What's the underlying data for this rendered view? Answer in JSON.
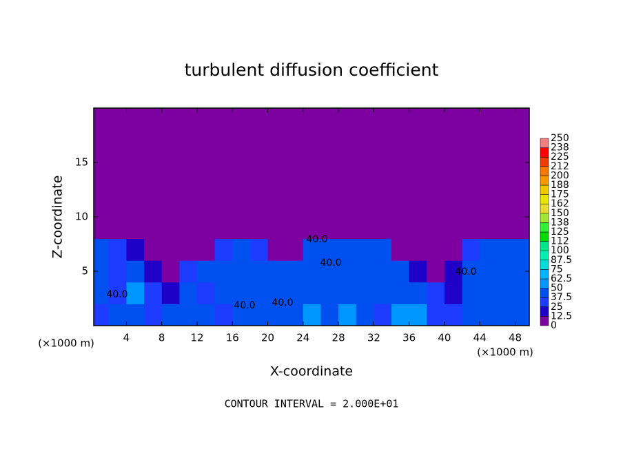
{
  "chart_data": {
    "type": "heatmap",
    "title": "turbulent diffusion coefficient",
    "x_label": "X-coordinate",
    "y_label": "Z-coordinate",
    "x_unit_label": "(×1000 m)",
    "y_unit_label": "(×1000 m)",
    "footer": "CONTOUR INTERVAL = 2.000E+01",
    "xlim": [
      0.3,
      49.6
    ],
    "ylim": [
      0,
      20
    ],
    "xticks": [
      4,
      8,
      12,
      16,
      20,
      24,
      28,
      32,
      36,
      40,
      44,
      48
    ],
    "yticks": [
      5,
      10,
      15
    ],
    "x": [
      0,
      2,
      4,
      6,
      8,
      10,
      12,
      14,
      16,
      18,
      20,
      22,
      24,
      26,
      28,
      30,
      32,
      34,
      36,
      38,
      40,
      42,
      44,
      46,
      48,
      50
    ],
    "y": [
      0,
      2,
      4,
      6,
      8,
      10,
      12,
      14,
      16,
      18,
      20
    ],
    "z": [
      [
        30,
        40,
        45,
        35,
        38,
        40,
        40,
        35,
        38,
        42,
        45,
        40,
        55,
        45,
        60,
        40,
        35,
        50,
        60,
        30,
        30,
        45,
        40,
        40,
        45
      ],
      [
        40,
        35,
        55,
        30,
        15,
        40,
        35,
        40,
        40,
        45,
        40,
        40,
        45,
        40,
        45,
        40,
        40,
        45,
        40,
        25,
        20,
        40,
        45,
        40,
        40
      ],
      [
        40,
        35,
        45,
        15,
        10,
        35,
        40,
        40,
        45,
        40,
        45,
        40,
        40,
        45,
        40,
        40,
        40,
        40,
        15,
        10,
        20,
        40,
        40,
        40,
        45
      ],
      [
        40,
        35,
        20,
        10,
        5,
        5,
        5,
        30,
        40,
        35,
        5,
        5,
        40,
        40,
        45,
        45,
        40,
        10,
        5,
        5,
        5,
        30,
        40,
        40,
        40
      ],
      [
        5,
        5,
        3,
        2,
        2,
        2,
        2,
        2,
        3,
        2,
        2,
        2,
        3,
        2,
        2,
        2,
        2,
        2,
        2,
        2,
        2,
        2,
        2,
        2,
        2
      ],
      [
        1,
        1,
        1,
        1,
        1,
        1,
        1,
        1,
        1,
        1,
        1,
        1,
        1,
        1,
        1,
        1,
        1,
        1,
        1,
        1,
        1,
        1,
        1,
        1,
        1
      ],
      [
        1,
        1,
        1,
        1,
        1,
        1,
        1,
        1,
        1,
        1,
        1,
        1,
        1,
        1,
        1,
        1,
        1,
        1,
        1,
        1,
        1,
        1,
        1,
        1,
        1
      ],
      [
        1,
        1,
        1,
        1,
        1,
        1,
        1,
        1,
        1,
        1,
        1,
        1,
        1,
        1,
        1,
        1,
        1,
        1,
        1,
        1,
        1,
        1,
        1,
        1,
        1
      ],
      [
        1,
        1,
        1,
        1,
        1,
        1,
        1,
        1,
        1,
        1,
        1,
        1,
        1,
        1,
        1,
        1,
        1,
        1,
        1,
        1,
        1,
        1,
        1,
        1,
        1
      ],
      [
        1,
        1,
        1,
        1,
        1,
        1,
        1,
        1,
        1,
        1,
        1,
        1,
        1,
        1,
        1,
        1,
        1,
        1,
        1,
        1,
        1,
        1,
        1,
        1,
        1
      ]
    ],
    "contour_labels": [
      "40.0",
      "40.0",
      "40.0",
      "40.0",
      "40.0",
      "40.0"
    ],
    "colorbar": {
      "ticks": [
        0,
        12.5,
        25,
        37.5,
        50,
        62.5,
        75,
        87.5,
        100,
        {
          "value": 112.5,
          "label": "112"
        },
        125,
        {
          "value": 137.5,
          "label": "138"
        },
        150,
        {
          "value": 162.5,
          "label": "162"
        },
        175,
        {
          "value": 187.5,
          "label": "188"
        },
        200,
        {
          "value": 212.5,
          "label": "212"
        },
        225,
        {
          "value": 237.5,
          "label": "238"
        },
        250
      ],
      "colors": [
        "#7d00a0",
        "#1e00c8",
        "#1e3cff",
        "#0050f0",
        "#0096ff",
        "#00b4ff",
        "#00dcdc",
        "#00f0b4",
        "#00e68c",
        "#00dc00",
        "#32f032",
        "#a0e632",
        "#e6dc32",
        "#e6e600",
        "#f0c800",
        "#fa9600",
        "#fa7800",
        "#f03c00",
        "#ff0000",
        "#f08080"
      ]
    }
  }
}
